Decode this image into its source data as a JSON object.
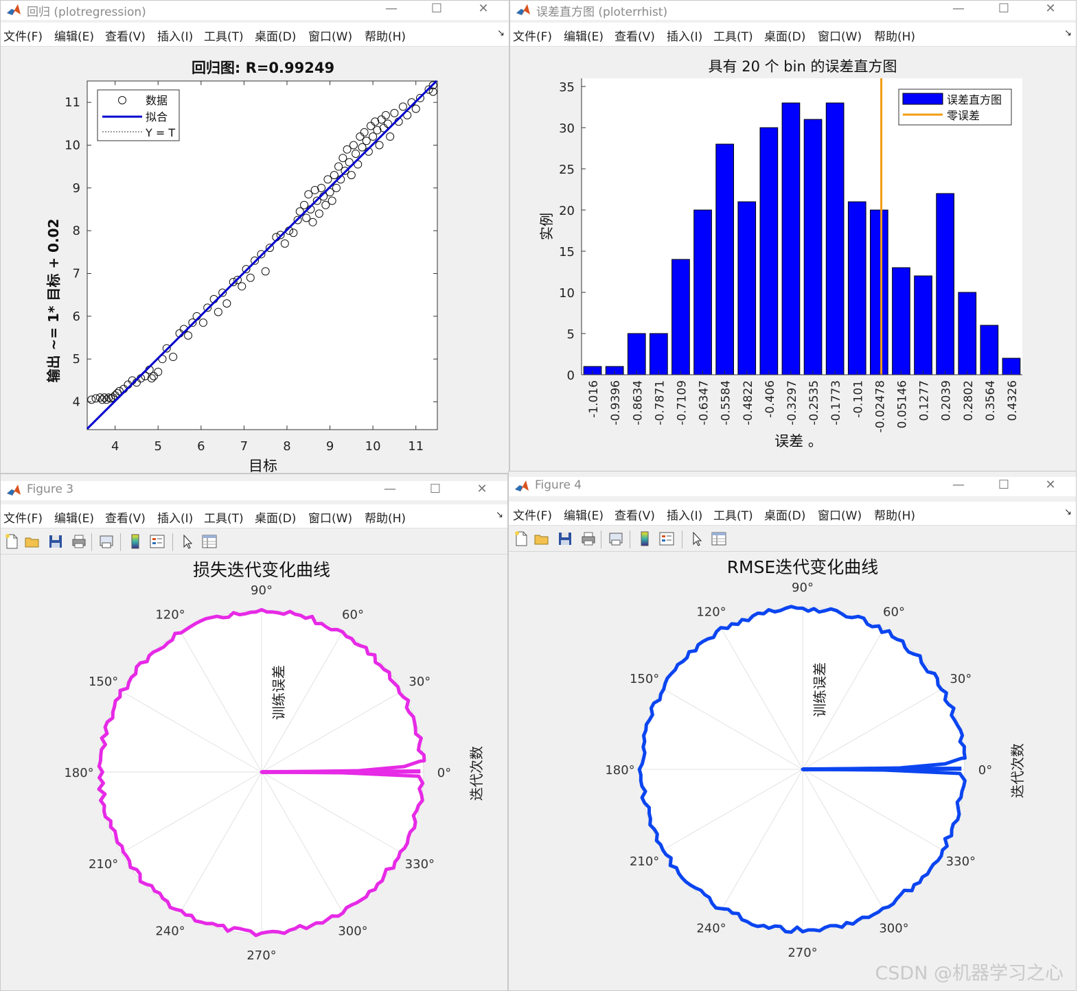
{
  "menus": [
    "文件(F)",
    "编辑(E)",
    "查看(V)",
    "插入(I)",
    "工具(T)",
    "桌面(D)",
    "窗口(W)",
    "帮助(H)"
  ],
  "window_buttons": {
    "minimize": "—",
    "maximize": "☐",
    "close": "✕"
  },
  "colors": {
    "bar": "#0000ff",
    "fit_line": "#0000cd",
    "zero_line": "#f39c12",
    "polar_loss": "#e62ae6",
    "polar_rmse": "#0b45f0"
  },
  "windows": [
    {
      "title": "回归 (plotregression)"
    },
    {
      "title": "误差直方图 (ploterrhist)"
    },
    {
      "title": "Figure 3"
    },
    {
      "title": "Figure 4"
    }
  ],
  "regression": {
    "title": "回归图: R=0.99249",
    "xlabel": "目标",
    "ylabel": "输出 ~= 1* 目标 + 0.02",
    "legend": [
      "数据",
      "拟合",
      "Y = T"
    ],
    "xticks": [
      "4",
      "5",
      "6",
      "7",
      "8",
      "9",
      "10",
      "11"
    ],
    "yticks": [
      "4",
      "5",
      "6",
      "7",
      "8",
      "9",
      "10",
      "11"
    ]
  },
  "histogram": {
    "title": "具有 20 个 bin 的误差直方图",
    "xlabel": "误差 。",
    "ylabel": "实例",
    "legend": [
      "误差直方图",
      "零误差"
    ],
    "yticks": [
      "0",
      "5",
      "10",
      "15",
      "20",
      "25",
      "30",
      "35"
    ]
  },
  "polar_loss": {
    "title": "损失迭代变化曲线",
    "rlabel": "训练误差",
    "side_label": "迭代次数",
    "angles": [
      "0°",
      "30°",
      "60°",
      "90°",
      "120°",
      "150°",
      "180°",
      "210°",
      "240°",
      "270°",
      "300°",
      "330°"
    ]
  },
  "polar_rmse": {
    "title": "RMSE迭代变化曲线",
    "rlabel": "训练误差",
    "side_label": "迭代次数",
    "angles": [
      "0°",
      "30°",
      "60°",
      "90°",
      "120°",
      "150°",
      "180°",
      "210°",
      "240°",
      "270°",
      "300°",
      "330°"
    ]
  },
  "watermark": "CSDN @机器学习之心",
  "chart_data": [
    {
      "type": "scatter",
      "title": "回归图: R=0.99249",
      "xlabel": "目标",
      "ylabel": "输出 ~= 1* 目标 + 0.02",
      "xlim": [
        3.35,
        11.5
      ],
      "ylim": [
        3.35,
        11.5
      ],
      "fit": {
        "slope": 1,
        "intercept": 0.02
      },
      "series": [
        {
          "name": "数据",
          "points": [
            [
              3.45,
              4.05
            ],
            [
              3.55,
              4.08
            ],
            [
              3.65,
              4.1
            ],
            [
              3.7,
              4.05
            ],
            [
              3.75,
              4.1
            ],
            [
              3.8,
              4.05
            ],
            [
              3.85,
              4.1
            ],
            [
              3.9,
              4.08
            ],
            [
              3.95,
              4.1
            ],
            [
              4.0,
              4.15
            ],
            [
              4.05,
              4.2
            ],
            [
              4.1,
              4.25
            ],
            [
              4.2,
              4.3
            ],
            [
              4.3,
              4.4
            ],
            [
              4.4,
              4.5
            ],
            [
              4.5,
              4.45
            ],
            [
              4.6,
              4.55
            ],
            [
              4.7,
              4.6
            ],
            [
              4.8,
              4.75
            ],
            [
              4.85,
              4.55
            ],
            [
              4.9,
              4.6
            ],
            [
              5.0,
              4.7
            ],
            [
              5.1,
              5.0
            ],
            [
              5.2,
              5.25
            ],
            [
              5.35,
              5.05
            ],
            [
              5.5,
              5.6
            ],
            [
              5.6,
              5.7
            ],
            [
              5.7,
              5.55
            ],
            [
              5.8,
              5.85
            ],
            [
              5.9,
              6.0
            ],
            [
              6.05,
              5.85
            ],
            [
              6.15,
              6.2
            ],
            [
              6.3,
              6.4
            ],
            [
              6.4,
              6.1
            ],
            [
              6.5,
              6.55
            ],
            [
              6.6,
              6.3
            ],
            [
              6.75,
              6.8
            ],
            [
              6.85,
              6.85
            ],
            [
              6.95,
              6.7
            ],
            [
              7.05,
              7.1
            ],
            [
              7.15,
              6.9
            ],
            [
              7.25,
              7.3
            ],
            [
              7.4,
              7.45
            ],
            [
              7.5,
              7.05
            ],
            [
              7.6,
              7.6
            ],
            [
              7.75,
              7.85
            ],
            [
              7.85,
              7.9
            ],
            [
              7.95,
              7.7
            ],
            [
              8.05,
              8.0
            ],
            [
              8.15,
              7.95
            ],
            [
              8.25,
              8.25
            ],
            [
              8.3,
              8.45
            ],
            [
              8.4,
              8.6
            ],
            [
              8.45,
              8.3
            ],
            [
              8.5,
              8.85
            ],
            [
              8.55,
              8.5
            ],
            [
              8.6,
              8.2
            ],
            [
              8.65,
              8.95
            ],
            [
              8.7,
              8.7
            ],
            [
              8.75,
              8.4
            ],
            [
              8.8,
              9.0
            ],
            [
              8.85,
              8.8
            ],
            [
              8.9,
              8.6
            ],
            [
              8.95,
              9.2
            ],
            [
              9.0,
              8.9
            ],
            [
              9.05,
              8.7
            ],
            [
              9.1,
              9.3
            ],
            [
              9.15,
              9.0
            ],
            [
              9.2,
              9.5
            ],
            [
              9.25,
              9.2
            ],
            [
              9.3,
              9.7
            ],
            [
              9.35,
              9.4
            ],
            [
              9.4,
              9.9
            ],
            [
              9.45,
              9.6
            ],
            [
              9.5,
              9.3
            ],
            [
              9.55,
              10.0
            ],
            [
              9.6,
              9.8
            ],
            [
              9.65,
              9.55
            ],
            [
              9.7,
              10.2
            ],
            [
              9.75,
              9.95
            ],
            [
              9.8,
              10.3
            ],
            [
              9.85,
              10.1
            ],
            [
              9.9,
              9.85
            ],
            [
              9.95,
              10.45
            ],
            [
              10.0,
              10.2
            ],
            [
              10.05,
              10.55
            ],
            [
              10.1,
              10.35
            ],
            [
              10.15,
              10.0
            ],
            [
              10.2,
              10.6
            ],
            [
              10.25,
              10.4
            ],
            [
              10.3,
              10.7
            ],
            [
              10.35,
              10.5
            ],
            [
              10.4,
              10.2
            ],
            [
              10.5,
              10.75
            ],
            [
              10.6,
              10.55
            ],
            [
              10.7,
              10.9
            ],
            [
              10.8,
              10.7
            ],
            [
              10.9,
              11.0
            ],
            [
              11.0,
              10.85
            ],
            [
              11.1,
              11.1
            ],
            [
              11.3,
              11.3
            ],
            [
              11.4,
              11.25
            ],
            [
              11.4,
              11.4
            ]
          ]
        },
        {
          "name": "拟合"
        },
        {
          "name": "Y = T"
        }
      ]
    },
    {
      "type": "bar",
      "title": "具有 20 个 bin 的误差直方图",
      "xlabel": "误差 。",
      "ylabel": "实例",
      "categories": [
        "-1.016",
        "-0.9396",
        "-0.8634",
        "-0.7871",
        "-0.7109",
        "-0.6347",
        "-0.5584",
        "-0.4822",
        "-0.406",
        "-0.3297",
        "-0.2535",
        "-0.1773",
        "-0.101",
        "-0.02478",
        "0.05146",
        "0.1277",
        "0.2039",
        "0.2802",
        "0.3564",
        "0.4326"
      ],
      "series": [
        {
          "name": "误差直方图",
          "values": [
            1,
            1,
            5,
            5,
            14,
            20,
            28,
            21,
            30,
            33,
            31,
            33,
            21,
            20,
            13,
            12,
            22,
            10,
            6,
            2
          ]
        }
      ],
      "zero_error_position": 13.1,
      "ylim": [
        0,
        36
      ]
    },
    {
      "type": "line",
      "title": "损失迭代变化曲线",
      "polar": true,
      "rlabel": "训练误差",
      "thetalabel": "迭代次数"
    },
    {
      "type": "line",
      "title": "RMSE迭代变化曲线",
      "polar": true,
      "rlabel": "训练误差",
      "thetalabel": "迭代次数"
    }
  ]
}
